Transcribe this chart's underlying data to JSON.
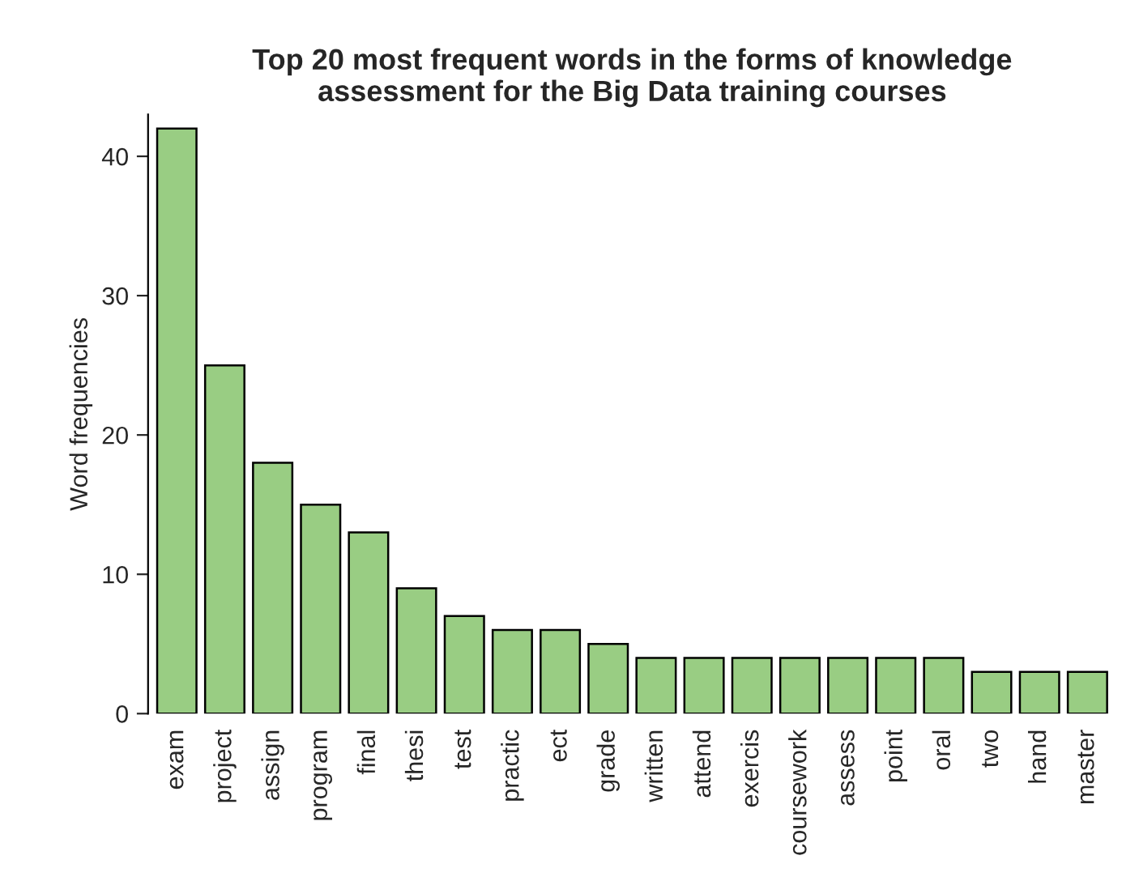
{
  "chart_data": {
    "type": "bar",
    "title": "Top 20 most frequent words in the forms of knowledge\nassessment for the Big Data training courses",
    "ylabel": "Word frequencies",
    "categories": [
      "exam",
      "project",
      "assign",
      "program",
      "final",
      "thesi",
      "test",
      "practic",
      "ect",
      "grade",
      "written",
      "attend",
      "exercis",
      "coursework",
      "assess",
      "point",
      "oral",
      "two",
      "hand",
      "master"
    ],
    "values": [
      42,
      25,
      18,
      15,
      13,
      9,
      7,
      6,
      6,
      5,
      4,
      4,
      4,
      4,
      4,
      4,
      4,
      3,
      3,
      3
    ],
    "color": "#99cd83",
    "ylim": [
      0,
      43
    ],
    "yticks": [
      0,
      10,
      20,
      30,
      40
    ],
    "grid": false,
    "legend": false
  }
}
